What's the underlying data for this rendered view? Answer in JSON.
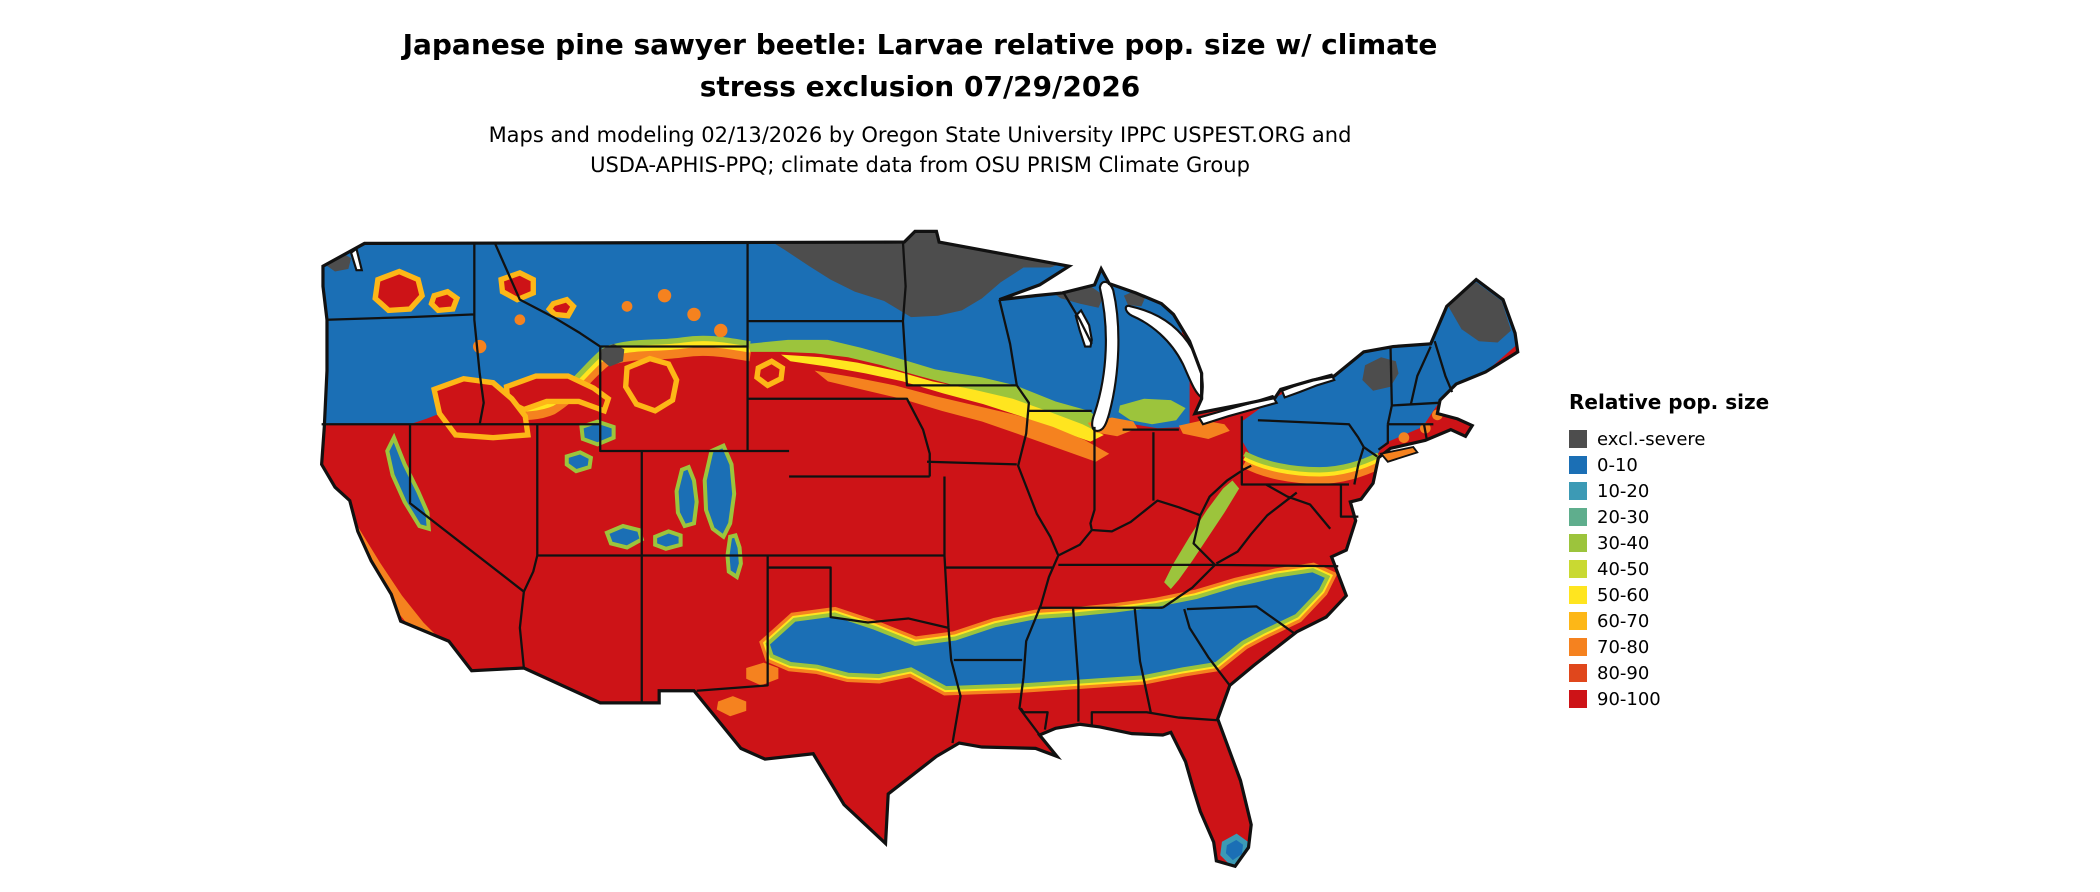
{
  "header": {
    "title_line1": "Japanese pine sawyer beetle: Larvae relative pop. size w/ climate",
    "title_line2": "stress exclusion 07/29/2026",
    "subtitle_line1": "Maps and modeling 02/13/2026 by Oregon State University IPPC USPEST.ORG and",
    "subtitle_line2": "USDA-APHIS-PPQ; climate data from OSU PRISM Climate Group"
  },
  "legend": {
    "title": "Relative pop. size",
    "items": [
      {
        "key": "ex",
        "label": "excl.-severe",
        "color": "#4d4d4d"
      },
      {
        "key": "b0",
        "label": "0-10",
        "color": "#1b6fb5"
      },
      {
        "key": "b10",
        "label": "10-20",
        "color": "#3c9ab5"
      },
      {
        "key": "b20",
        "label": "20-30",
        "color": "#5fae8d"
      },
      {
        "key": "b30",
        "label": "30-40",
        "color": "#9cc43c"
      },
      {
        "key": "b40",
        "label": "40-50",
        "color": "#c9d932"
      },
      {
        "key": "b50",
        "label": "50-60",
        "color": "#ffe51f"
      },
      {
        "key": "b60",
        "label": "60-70",
        "color": "#fdb717"
      },
      {
        "key": "b70",
        "label": "70-80",
        "color": "#f5821f"
      },
      {
        "key": "b80",
        "label": "80-90",
        "color": "#e0471c"
      },
      {
        "key": "b90",
        "label": "90-100",
        "color": "#cd1317"
      }
    ]
  },
  "map": {
    "border_color": "#111111",
    "water_color": "#ffffff"
  }
}
